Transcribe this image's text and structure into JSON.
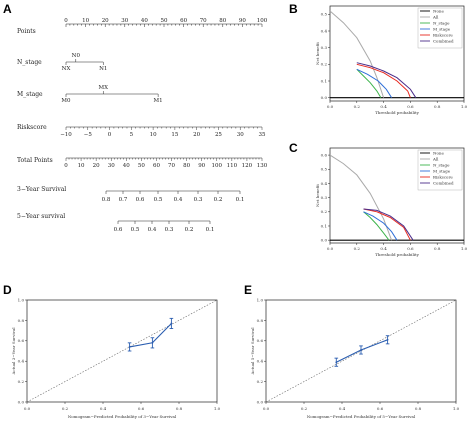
{
  "panels": {
    "A": {
      "label": "A",
      "rows": [
        {
          "name": "Points",
          "ticks": [
            "0",
            "10",
            "20",
            "30",
            "40",
            "50",
            "60",
            "70",
            "80",
            "90",
            "100"
          ],
          "min": 0,
          "max": 100
        },
        {
          "name": "N_stage",
          "ticks": [
            "NX",
            "N0",
            "N1"
          ],
          "values": [
            0,
            5,
            19
          ]
        },
        {
          "name": "M_stage",
          "ticks": [
            "M0",
            "MX",
            "M1"
          ],
          "values": [
            0,
            19,
            47
          ]
        },
        {
          "name": "Riskscore",
          "ticks": [
            "−10",
            "−5",
            "0",
            "5",
            "10",
            "15",
            "20",
            "25",
            "30",
            "35"
          ],
          "min": -10,
          "max": 35
        },
        {
          "name": "Total Points",
          "ticks": [
            "0",
            "10",
            "20",
            "30",
            "40",
            "50",
            "60",
            "70",
            "80",
            "90",
            "100",
            "110",
            "120",
            "130"
          ],
          "min": 0,
          "max": 130
        },
        {
          "name": "3−Year Survival",
          "ticks": [
            "0.8",
            "0.7",
            "0.6",
            "0.5",
            "0.4",
            "0.3",
            "0.2",
            "0.1"
          ]
        },
        {
          "name": "5−Year survival",
          "ticks": [
            "0.6",
            "0.5",
            "0.4",
            "0.3",
            "0.2",
            "0.1"
          ]
        }
      ]
    },
    "B": {
      "label": "B",
      "xlabel": "Threshold probability",
      "ylabel": "Net benefit",
      "xticks": [
        "0.0",
        "0.2",
        "0.4",
        "0.6",
        "0.8",
        "1.0"
      ],
      "yticks": [
        "0.0",
        "0.1",
        "0.2",
        "0.3",
        "0.4",
        "0.5"
      ],
      "legend": [
        "None",
        "All",
        "N_stage",
        "M_stage",
        "Riskscore",
        "Combined"
      ],
      "colors": {
        "None": "#000000",
        "All": "#aaaaaa",
        "N_stage": "#3cb44b",
        "M_stage": "#2f6fd8",
        "Riskscore": "#e8281e",
        "Combined": "#4b2d8a"
      }
    },
    "C": {
      "label": "C",
      "xlabel": "Threshold probability",
      "ylabel": "Net benefit",
      "xticks": [
        "0.0",
        "0.2",
        "0.4",
        "0.6",
        "0.8",
        "1.0"
      ],
      "yticks": [
        "0.0",
        "0.1",
        "0.2",
        "0.3",
        "0.4",
        "0.5",
        "0.6"
      ],
      "legend": [
        "None",
        "All",
        "N_stage",
        "M_stage",
        "Riskscore",
        "Combined"
      ],
      "colors": {
        "None": "#000000",
        "All": "#aaaaaa",
        "N_stage": "#3cb44b",
        "M_stage": "#2f6fd8",
        "Riskscore": "#e8281e",
        "Combined": "#4b2d8a"
      }
    },
    "D": {
      "label": "D",
      "xlabel": "Nomogram−Predicted Probability of 3−Year Survival",
      "ylabel": "Actual 3−Year Survival",
      "xticks": [
        "0.0",
        "0.2",
        "0.4",
        "0.6",
        "0.8",
        "1.0"
      ],
      "yticks": [
        "0.0",
        "0.2",
        "0.4",
        "0.6",
        "0.8",
        "1.0"
      ]
    },
    "E": {
      "label": "E",
      "xlabel": "Nomogram−Predicted Probability of 5−Year Survival",
      "ylabel": "Actual 5−Year Survival",
      "xticks": [
        "0.0",
        "0.2",
        "0.4",
        "0.6",
        "0.8",
        "1.0"
      ],
      "yticks": [
        "0.0",
        "0.2",
        "0.4",
        "0.6",
        "0.8",
        "1.0"
      ]
    }
  },
  "chart_data": [
    {
      "type": "line",
      "panel": "B",
      "xlabel": "Threshold probability",
      "ylabel": "Net benefit",
      "xlim": [
        0,
        1
      ],
      "ylim": [
        -0.02,
        0.55
      ],
      "series": [
        {
          "name": "None",
          "x": [
            0,
            1
          ],
          "y": [
            0,
            0
          ]
        },
        {
          "name": "All",
          "x": [
            0,
            0.1,
            0.2,
            0.3,
            0.35,
            0.4
          ],
          "y": [
            0.52,
            0.45,
            0.36,
            0.22,
            0.12,
            0
          ]
        },
        {
          "name": "N_stage",
          "x": [
            0.2,
            0.25,
            0.3,
            0.35,
            0.38
          ],
          "y": [
            0.17,
            0.13,
            0.09,
            0.04,
            0
          ]
        },
        {
          "name": "M_stage",
          "x": [
            0.2,
            0.28,
            0.36,
            0.42,
            0.46
          ],
          "y": [
            0.17,
            0.14,
            0.1,
            0.05,
            0
          ]
        },
        {
          "name": "Riskscore",
          "x": [
            0.2,
            0.3,
            0.4,
            0.5,
            0.58,
            0.6
          ],
          "y": [
            0.2,
            0.18,
            0.15,
            0.1,
            0.04,
            0
          ]
        },
        {
          "name": "Combined",
          "x": [
            0.2,
            0.3,
            0.4,
            0.5,
            0.6,
            0.64
          ],
          "y": [
            0.21,
            0.19,
            0.16,
            0.12,
            0.05,
            0
          ]
        }
      ]
    },
    {
      "type": "line",
      "panel": "C",
      "xlabel": "Threshold probability",
      "ylabel": "Net benefit",
      "xlim": [
        0,
        1
      ],
      "ylim": [
        -0.02,
        0.65
      ],
      "series": [
        {
          "name": "None",
          "x": [
            0,
            1
          ],
          "y": [
            0,
            0
          ]
        },
        {
          "name": "All",
          "x": [
            0,
            0.1,
            0.2,
            0.3,
            0.4,
            0.46
          ],
          "y": [
            0.6,
            0.54,
            0.46,
            0.33,
            0.15,
            0
          ]
        },
        {
          "name": "N_stage",
          "x": [
            0.25,
            0.3,
            0.35,
            0.4,
            0.44
          ],
          "y": [
            0.2,
            0.16,
            0.11,
            0.05,
            0
          ]
        },
        {
          "name": "M_stage",
          "x": [
            0.25,
            0.32,
            0.4,
            0.46,
            0.5
          ],
          "y": [
            0.2,
            0.17,
            0.12,
            0.06,
            0
          ]
        },
        {
          "name": "Riskscore",
          "x": [
            0.25,
            0.35,
            0.45,
            0.55,
            0.6
          ],
          "y": [
            0.22,
            0.2,
            0.16,
            0.09,
            0
          ]
        },
        {
          "name": "Combined",
          "x": [
            0.25,
            0.35,
            0.45,
            0.55,
            0.62
          ],
          "y": [
            0.22,
            0.21,
            0.17,
            0.1,
            0
          ]
        }
      ]
    },
    {
      "type": "line",
      "panel": "D",
      "xlabel": "Nomogram−Predicted Probability of 3−Year Survival",
      "ylabel": "Actual 3−Year Survival",
      "xlim": [
        0,
        1
      ],
      "ylim": [
        0,
        1
      ],
      "series": [
        {
          "name": "",
          "x": [
            0.54,
            0.66,
            0.76
          ],
          "y": [
            0.54,
            0.58,
            0.77
          ],
          "err": [
            0.04,
            0.05,
            0.05
          ]
        }
      ]
    },
    {
      "type": "line",
      "panel": "E",
      "xlabel": "Nomogram−Predicted Probability of 5−Year Survival",
      "ylabel": "Actual 5−Year Survival",
      "xlim": [
        0,
        1
      ],
      "ylim": [
        0,
        1
      ],
      "series": [
        {
          "name": "",
          "x": [
            0.37,
            0.5,
            0.64
          ],
          "y": [
            0.39,
            0.51,
            0.61
          ],
          "err": [
            0.04,
            0.04,
            0.04
          ]
        }
      ]
    }
  ]
}
